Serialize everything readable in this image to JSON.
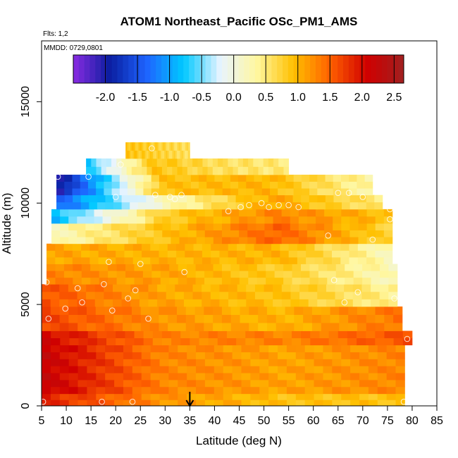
{
  "chart_data": {
    "type": "heatmap",
    "title": "ATOM1 Northeast_Pacific OSc_PM1_AMS",
    "flights_label": "Flts: 1,2",
    "dates_label": "MMDD: 0729,0801",
    "xlabel": "Latitude (deg N)",
    "ylabel": "Altitude (m)",
    "xlim": [
      5,
      85
    ],
    "ylim": [
      0,
      18000
    ],
    "x_ticks": [
      5,
      10,
      15,
      20,
      25,
      30,
      35,
      40,
      45,
      50,
      55,
      60,
      65,
      70,
      75,
      80,
      85
    ],
    "y_ticks": [
      0,
      5000,
      10000,
      15000
    ],
    "marker_latitude": 35,
    "colorbar": {
      "range": [
        -2.5,
        2.65
      ],
      "ticks": [
        -2.0,
        -1.5,
        -1.0,
        -0.5,
        0.0,
        0.5,
        1.0,
        1.5,
        2.0,
        2.5
      ],
      "tick_labels": [
        "-2.0",
        "-1.5",
        "-1.0",
        "-0.5",
        "0.0",
        "0.5",
        "1.0",
        "1.5",
        "2.0",
        "2.5"
      ],
      "colors": [
        "#8a2be2",
        "#0a1ea0",
        "#1e64ff",
        "#00c8ff",
        "#e8f4ff",
        "#fff7a0",
        "#ffc000",
        "#ff6000",
        "#d00000",
        "#a02020"
      ]
    },
    "layers": [
      {
        "alt": [
          0,
          600
        ],
        "x0": 5,
        "x1": 78.5,
        "values": [
          1.9,
          1.2,
          0.9,
          0.9
        ]
      },
      {
        "alt": [
          600,
          3000
        ],
        "x0": 5,
        "x1": 78.5,
        "values": [
          2.2,
          1.3,
          1.1,
          1.3
        ]
      },
      {
        "alt": [
          3000,
          3700
        ],
        "x0": 5,
        "x1": 80,
        "values": [
          2.1,
          1.3,
          1.3,
          1.6
        ]
      },
      {
        "alt": [
          3700,
          4900
        ],
        "x0": 5,
        "x1": 78,
        "values": [
          1.7,
          1.2,
          1.0,
          1.4
        ]
      },
      {
        "alt": [
          4900,
          6000
        ],
        "x0": 5,
        "x1": 77,
        "values": [
          1.6,
          1.1,
          0.9,
          0.4
        ]
      },
      {
        "alt": [
          6000,
          7000
        ],
        "x0": 6,
        "x1": 77,
        "values": [
          1.3,
          1.1,
          0.8,
          0.2
        ]
      },
      {
        "alt": [
          7000,
          8000
        ],
        "x0": 6,
        "x1": 76,
        "values": [
          1.1,
          1.0,
          1.0,
          0.2
        ]
      },
      {
        "alt": [
          8000,
          9000
        ],
        "x0": 7,
        "x1": 76,
        "values": [
          0.2,
          0.9,
          1.5,
          0.7
        ]
      },
      {
        "alt": [
          9000,
          9700
        ],
        "x0": 7,
        "x1": 76,
        "values": [
          -0.9,
          0.8,
          1.3,
          0.9
        ]
      },
      {
        "alt": [
          9700,
          10400
        ],
        "x0": 8,
        "x1": 74,
        "values": [
          -1.4,
          0.2,
          1.1,
          0.5
        ]
      },
      {
        "alt": [
          10400,
          11400
        ],
        "x0": 8,
        "x1": 72,
        "values": [
          -2.1,
          0.9,
          1.0,
          0.3
        ]
      },
      {
        "alt": [
          11400,
          12200
        ],
        "x0": 14,
        "x1": 55,
        "values": [
          -0.8,
          0.9,
          0.6,
          0.5
        ]
      },
      {
        "alt": [
          12200,
          13000
        ],
        "x0": 22,
        "x1": 35,
        "values": [
          0.9,
          0.8,
          0.7,
          0.6
        ]
      }
    ],
    "points": [
      {
        "x": 5.3,
        "y": 200
      },
      {
        "x": 17.2,
        "y": 200
      },
      {
        "x": 23.4,
        "y": 200
      },
      {
        "x": 78.3,
        "y": 200
      },
      {
        "x": 6.4,
        "y": 4300
      },
      {
        "x": 9.8,
        "y": 4800
      },
      {
        "x": 13.2,
        "y": 5100
      },
      {
        "x": 19.3,
        "y": 4700
      },
      {
        "x": 22.5,
        "y": 5300
      },
      {
        "x": 24.0,
        "y": 5700
      },
      {
        "x": 26.6,
        "y": 4300
      },
      {
        "x": 6.0,
        "y": 6100
      },
      {
        "x": 12.3,
        "y": 5800
      },
      {
        "x": 17.6,
        "y": 6000
      },
      {
        "x": 18.6,
        "y": 7100
      },
      {
        "x": 25.0,
        "y": 7000
      },
      {
        "x": 33.9,
        "y": 6600
      },
      {
        "x": 79.0,
        "y": 3300
      },
      {
        "x": 76.4,
        "y": 5300
      },
      {
        "x": 66.3,
        "y": 5100
      },
      {
        "x": 69.0,
        "y": 5600
      },
      {
        "x": 64.2,
        "y": 6200
      },
      {
        "x": 63.0,
        "y": 8400
      },
      {
        "x": 72.0,
        "y": 8200
      },
      {
        "x": 75.5,
        "y": 9200
      },
      {
        "x": 75.5,
        "y": 9700
      },
      {
        "x": 42.8,
        "y": 9600
      },
      {
        "x": 45.3,
        "y": 9800
      },
      {
        "x": 47.0,
        "y": 9900
      },
      {
        "x": 49.5,
        "y": 10000
      },
      {
        "x": 51.0,
        "y": 9800
      },
      {
        "x": 53.0,
        "y": 9900
      },
      {
        "x": 55.0,
        "y": 9900
      },
      {
        "x": 57.0,
        "y": 9800
      },
      {
        "x": 32.0,
        "y": 10200
      },
      {
        "x": 33.3,
        "y": 10400
      },
      {
        "x": 31.0,
        "y": 10300
      },
      {
        "x": 28.0,
        "y": 10400
      },
      {
        "x": 20.0,
        "y": 10300
      },
      {
        "x": 65.0,
        "y": 10500
      },
      {
        "x": 67.2,
        "y": 10500
      },
      {
        "x": 70.0,
        "y": 10300
      },
      {
        "x": 8.3,
        "y": 11300
      },
      {
        "x": 14.5,
        "y": 11300
      },
      {
        "x": 21.0,
        "y": 11900
      },
      {
        "x": 27.3,
        "y": 12700
      }
    ]
  }
}
